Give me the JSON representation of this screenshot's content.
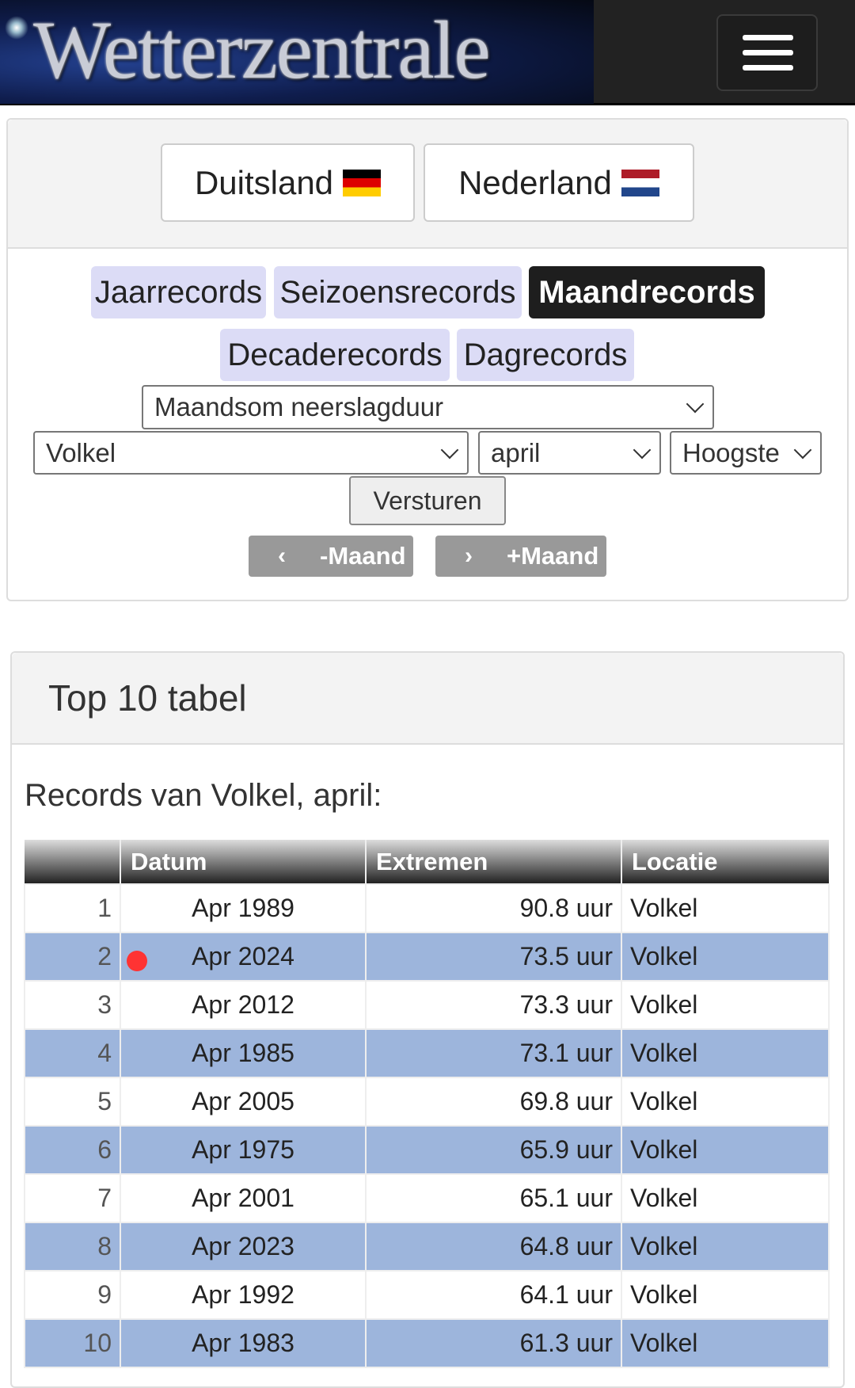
{
  "header": {
    "logo_text": "Wetterzentrale",
    "menu_icon": "hamburger-icon"
  },
  "countries": [
    {
      "label": "Duitsland",
      "flag": "germany-flag"
    },
    {
      "label": "Nederland",
      "flag": "netherlands-flag"
    }
  ],
  "tabs": [
    {
      "label": "Jaarrecords"
    },
    {
      "label": "Seizoensrecords"
    },
    {
      "label": "Maandrecords",
      "active": true
    },
    {
      "label": "Decaderecords"
    },
    {
      "label": "Dagrecords"
    }
  ],
  "filters": {
    "parameter": "Maandsom neerslagduur",
    "station": "Volkel",
    "month": "april",
    "order": "Hoogste",
    "submit": "Versturen"
  },
  "nav": {
    "prev": "-Maand",
    "next": "+Maand"
  },
  "panel": {
    "title": "Top 10 tabel",
    "records_title": "Records van Volkel, april:"
  },
  "colors": {
    "alt_row": "#9db5dc",
    "active_tab": "#1e1e1e",
    "tab": "#dcdcf6",
    "marker": "#ff3333"
  },
  "table": {
    "headers": [
      "",
      "Datum",
      "Extremen",
      "Locatie"
    ],
    "rows": [
      {
        "rank": "1",
        "date": "Apr 1989",
        "value": "90.8 uur",
        "loc": "Volkel"
      },
      {
        "rank": "2",
        "date": "Apr 2024",
        "value": "73.5 uur",
        "loc": "Volkel",
        "marker": true
      },
      {
        "rank": "3",
        "date": "Apr 2012",
        "value": "73.3 uur",
        "loc": "Volkel"
      },
      {
        "rank": "4",
        "date": "Apr 1985",
        "value": "73.1 uur",
        "loc": "Volkel"
      },
      {
        "rank": "5",
        "date": "Apr 2005",
        "value": "69.8 uur",
        "loc": "Volkel"
      },
      {
        "rank": "6",
        "date": "Apr 1975",
        "value": "65.9 uur",
        "loc": "Volkel"
      },
      {
        "rank": "7",
        "date": "Apr 2001",
        "value": "65.1 uur",
        "loc": "Volkel"
      },
      {
        "rank": "8",
        "date": "Apr 2023",
        "value": "64.8 uur",
        "loc": "Volkel"
      },
      {
        "rank": "9",
        "date": "Apr 1992",
        "value": "64.1 uur",
        "loc": "Volkel"
      },
      {
        "rank": "10",
        "date": "Apr 1983",
        "value": "61.3 uur",
        "loc": "Volkel"
      }
    ]
  }
}
